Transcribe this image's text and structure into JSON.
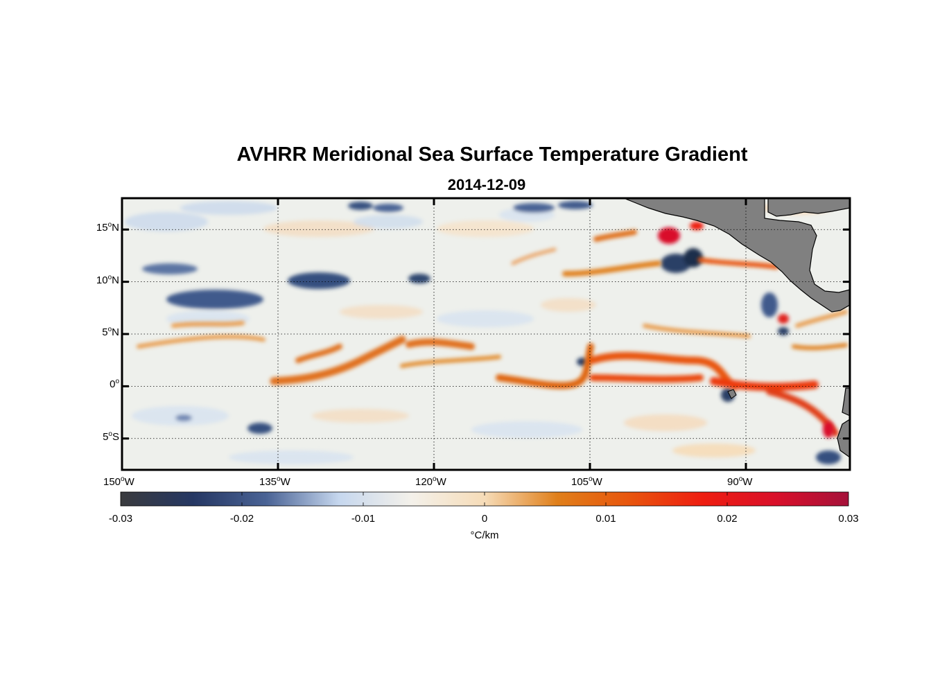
{
  "figure": {
    "title": "AVHRR Meridional Sea Surface Temperature Gradient",
    "date": "2014-12-09"
  },
  "map": {
    "lon_range": [
      -150,
      -80
    ],
    "lat_range": [
      -8,
      18
    ],
    "lon_ticks": [
      {
        "value": -150,
        "num": "150",
        "deg": "o",
        "hem": "W"
      },
      {
        "value": -135,
        "num": "135",
        "deg": "o",
        "hem": "W"
      },
      {
        "value": -120,
        "num": "120",
        "deg": "o",
        "hem": "W"
      },
      {
        "value": -105,
        "num": "105",
        "deg": "o",
        "hem": "W"
      },
      {
        "value": -90,
        "num": "90",
        "deg": "o",
        "hem": "W"
      }
    ],
    "lat_ticks": [
      {
        "value": 15,
        "num": "15",
        "deg": "o",
        "hem": "N"
      },
      {
        "value": 10,
        "num": "10",
        "deg": "o",
        "hem": "N"
      },
      {
        "value": 5,
        "num": "5",
        "deg": "o",
        "hem": "N"
      },
      {
        "value": 0,
        "num": "0",
        "deg": "o",
        "hem": ""
      },
      {
        "value": -5,
        "num": "5",
        "deg": "o",
        "hem": "S"
      }
    ],
    "land_color": "#808080",
    "ocean_background": "#eef0ec"
  },
  "colorbar": {
    "range": [
      -0.03,
      0.03
    ],
    "tick_labels": [
      "-0.03",
      "-0.02",
      "-0.01",
      "0",
      "0.01",
      "0.02",
      "0.03"
    ],
    "tick_values": [
      -0.03,
      -0.02,
      -0.01,
      0,
      0.01,
      0.02,
      0.03
    ],
    "units": "°C/km",
    "colors": [
      "#3a3b3e",
      "#253763",
      "#4a6395",
      "#c6d7ee",
      "#f4f1ea",
      "#f6dcb8",
      "#e07f1a",
      "#e8550d",
      "#ee1d10",
      "#d9102a",
      "#a5113a"
    ]
  }
}
